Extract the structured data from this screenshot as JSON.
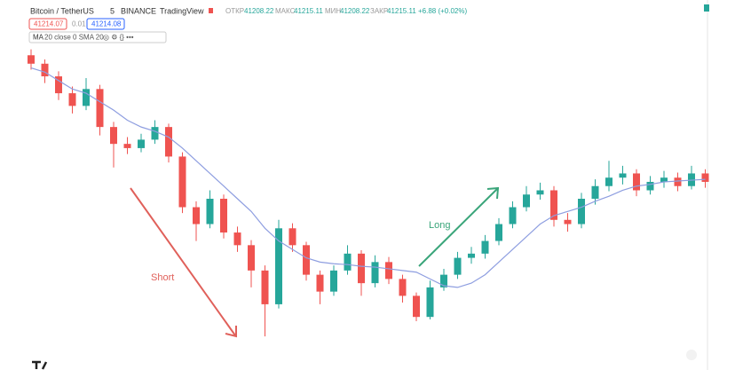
{
  "header": {
    "symbol": "Bitcoin / TetherUS",
    "interval": "5",
    "exchange": "BINANCE",
    "brand": "TradingView",
    "open_label": "ОТКР",
    "open": "41208.22",
    "high_label": "МАКС",
    "high": "41215.11",
    "low_label": "МИН",
    "low": "41208.22",
    "close_label": "ЗАКР",
    "close": "41215.11",
    "change": "+6.88 (+0.02%)",
    "sell": "41214.07",
    "spread": "0.01",
    "buy": "41214.08"
  },
  "chart_data": {
    "type": "candlestick",
    "up_color": "#26a69a",
    "down_color": "#ef5350",
    "ylim": [
      40990,
      41360
    ],
    "open": [
      41345,
      41335,
      41320,
      41300,
      41285,
      41305,
      41260,
      41240,
      41235,
      41245,
      41260,
      41225,
      41165,
      41145,
      41175,
      41135,
      41120,
      41090,
      41050,
      41140,
      41120,
      41085,
      41065,
      41090,
      41110,
      41075,
      41100,
      41080,
      41060,
      41035,
      41070,
      41085,
      41105,
      41110,
      41125,
      41145,
      41165,
      41180,
      41185,
      41150,
      41145,
      41175,
      41190,
      41200,
      41205,
      41185,
      41195,
      41200,
      41190,
      41205
    ],
    "high": [
      41352,
      41340,
      41326,
      41308,
      41318,
      41310,
      41266,
      41248,
      41252,
      41268,
      41264,
      41230,
      41172,
      41185,
      41180,
      41142,
      41126,
      41096,
      41150,
      41146,
      41124,
      41090,
      41096,
      41120,
      41114,
      41108,
      41106,
      41085,
      41064,
      41078,
      41092,
      41112,
      41118,
      41132,
      41152,
      41172,
      41190,
      41194,
      41190,
      41158,
      41182,
      41198,
      41220,
      41214,
      41210,
      41202,
      41208,
      41206,
      41214,
      41210
    ],
    "low": [
      41328,
      41312,
      41292,
      41276,
      41280,
      41250,
      41212,
      41228,
      41230,
      41240,
      41218,
      41158,
      41125,
      41140,
      41128,
      41112,
      41070,
      41012,
      41045,
      41112,
      41078,
      41050,
      41060,
      41085,
      41060,
      41070,
      41074,
      41052,
      41030,
      41032,
      41066,
      41080,
      41098,
      41104,
      41120,
      41140,
      41160,
      41174,
      41142,
      41136,
      41140,
      41168,
      41184,
      41192,
      41178,
      41180,
      41188,
      41184,
      41186,
      41188
    ],
    "close": [
      41335,
      41320,
      41300,
      41285,
      41305,
      41260,
      41240,
      41235,
      41245,
      41260,
      41225,
      41165,
      41145,
      41175,
      41135,
      41120,
      41090,
      41050,
      41140,
      41120,
      41085,
      41065,
      41090,
      41110,
      41075,
      41100,
      41080,
      41060,
      41035,
      41070,
      41085,
      41105,
      41110,
      41125,
      41145,
      41165,
      41180,
      41185,
      41150,
      41145,
      41175,
      41190,
      41200,
      41205,
      41185,
      41195,
      41200,
      41190,
      41205,
      41195
    ],
    "ma": {
      "name": "MA",
      "params": "20 close 0 SMA 20",
      "color": "#8e9ee0",
      "values": [
        41330,
        41325,
        41315,
        41305,
        41300,
        41290,
        41280,
        41268,
        41260,
        41255,
        41248,
        41235,
        41220,
        41205,
        41190,
        41175,
        41160,
        41140,
        41125,
        41115,
        41105,
        41100,
        41098,
        41097,
        41095,
        41094,
        41092,
        41090,
        41088,
        41080,
        41072,
        41070,
        41075,
        41085,
        41100,
        41115,
        41130,
        41145,
        41155,
        41160,
        41165,
        41172,
        41178,
        41185,
        41190,
        41192,
        41195,
        41196,
        41197,
        41198
      ]
    },
    "annotations": [
      {
        "text": "Short",
        "color": "#e0605a"
      },
      {
        "text": "Long",
        "color": "#3aa57a"
      }
    ]
  }
}
